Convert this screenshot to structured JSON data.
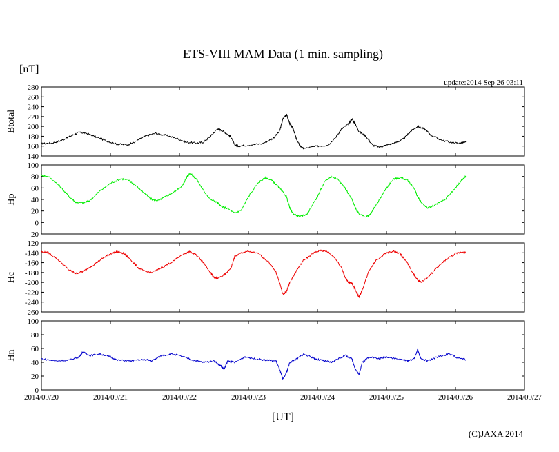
{
  "chart_data": {
    "type": "line",
    "title": "ETS-VIII MAM Data (1 min. sampling)",
    "y_unit_label": "[nT]",
    "update_text": "update:2014 Sep 26 03:11",
    "x_unit_label": "[UT]",
    "credit": "(C)JAXA 2014",
    "x_ticks": [
      "2014/09/20",
      "2014/09/21",
      "2014/09/22",
      "2014/09/23",
      "2014/09/24",
      "2014/09/25",
      "2014/09/26",
      "2014/09/27"
    ],
    "x_range": [
      "2014/09/20",
      "2014/09/27"
    ],
    "x_range_days": [
      0,
      7
    ],
    "panels": [
      {
        "name": "Btotal",
        "color": "#000000",
        "ylim": [
          140,
          280
        ],
        "yticks": [
          "280",
          "260",
          "240",
          "220",
          "200",
          "180",
          "160",
          "140"
        ],
        "points": [
          [
            0,
            165
          ],
          [
            0.15,
            166
          ],
          [
            0.3,
            172
          ],
          [
            0.45,
            182
          ],
          [
            0.55,
            188
          ],
          [
            0.65,
            186
          ],
          [
            0.8,
            178
          ],
          [
            0.95,
            170
          ],
          [
            1.1,
            164
          ],
          [
            1.25,
            163
          ],
          [
            1.35,
            168
          ],
          [
            1.5,
            180
          ],
          [
            1.65,
            186
          ],
          [
            1.8,
            182
          ],
          [
            1.95,
            176
          ],
          [
            2.1,
            168
          ],
          [
            2.25,
            166
          ],
          [
            2.35,
            168
          ],
          [
            2.45,
            180
          ],
          [
            2.55,
            195
          ],
          [
            2.6,
            193
          ],
          [
            2.7,
            184
          ],
          [
            2.75,
            178
          ],
          [
            2.8,
            162
          ],
          [
            2.85,
            160
          ],
          [
            3.0,
            162
          ],
          [
            3.2,
            165
          ],
          [
            3.35,
            175
          ],
          [
            3.45,
            190
          ],
          [
            3.5,
            215
          ],
          [
            3.55,
            225
          ],
          [
            3.6,
            205
          ],
          [
            3.65,
            195
          ],
          [
            3.7,
            172
          ],
          [
            3.75,
            160
          ],
          [
            3.8,
            155
          ],
          [
            4.0,
            160
          ],
          [
            4.15,
            162
          ],
          [
            4.25,
            175
          ],
          [
            4.35,
            195
          ],
          [
            4.45,
            205
          ],
          [
            4.5,
            215
          ],
          [
            4.55,
            205
          ],
          [
            4.6,
            190
          ],
          [
            4.7,
            180
          ],
          [
            4.8,
            162
          ],
          [
            4.9,
            158
          ],
          [
            5.0,
            162
          ],
          [
            5.15,
            168
          ],
          [
            5.25,
            175
          ],
          [
            5.35,
            190
          ],
          [
            5.45,
            200
          ],
          [
            5.55,
            195
          ],
          [
            5.65,
            182
          ],
          [
            5.8,
            172
          ],
          [
            5.95,
            167
          ],
          [
            6.05,
            166
          ],
          [
            6.15,
            168
          ]
        ]
      },
      {
        "name": "Hp",
        "color": "#00ee00",
        "ylim": [
          -20,
          100
        ],
        "yticks": [
          "100",
          "80",
          "60",
          "40",
          "20",
          "0",
          "-20"
        ],
        "points": [
          [
            0,
            82
          ],
          [
            0.1,
            80
          ],
          [
            0.25,
            65
          ],
          [
            0.4,
            45
          ],
          [
            0.5,
            35
          ],
          [
            0.6,
            34
          ],
          [
            0.7,
            38
          ],
          [
            0.85,
            55
          ],
          [
            1.0,
            68
          ],
          [
            1.15,
            76
          ],
          [
            1.25,
            74
          ],
          [
            1.35,
            66
          ],
          [
            1.5,
            50
          ],
          [
            1.6,
            40
          ],
          [
            1.7,
            38
          ],
          [
            1.8,
            45
          ],
          [
            1.95,
            55
          ],
          [
            2.05,
            65
          ],
          [
            2.1,
            78
          ],
          [
            2.15,
            86
          ],
          [
            2.25,
            75
          ],
          [
            2.35,
            55
          ],
          [
            2.45,
            40
          ],
          [
            2.55,
            35
          ],
          [
            2.6,
            28
          ],
          [
            2.7,
            24
          ],
          [
            2.8,
            16
          ],
          [
            2.9,
            22
          ],
          [
            3.0,
            45
          ],
          [
            3.15,
            70
          ],
          [
            3.25,
            78
          ],
          [
            3.35,
            72
          ],
          [
            3.45,
            60
          ],
          [
            3.55,
            45
          ],
          [
            3.6,
            25
          ],
          [
            3.65,
            15
          ],
          [
            3.75,
            10
          ],
          [
            3.85,
            15
          ],
          [
            4.0,
            45
          ],
          [
            4.1,
            70
          ],
          [
            4.2,
            80
          ],
          [
            4.3,
            75
          ],
          [
            4.4,
            60
          ],
          [
            4.5,
            40
          ],
          [
            4.55,
            25
          ],
          [
            4.6,
            15
          ],
          [
            4.7,
            10
          ],
          [
            4.75,
            12
          ],
          [
            4.85,
            30
          ],
          [
            5.0,
            60
          ],
          [
            5.1,
            75
          ],
          [
            5.2,
            78
          ],
          [
            5.3,
            74
          ],
          [
            5.4,
            60
          ],
          [
            5.45,
            45
          ],
          [
            5.5,
            35
          ],
          [
            5.6,
            25
          ],
          [
            5.7,
            30
          ],
          [
            5.85,
            40
          ],
          [
            6.0,
            60
          ],
          [
            6.1,
            75
          ],
          [
            6.15,
            80
          ]
        ]
      },
      {
        "name": "Hc",
        "color": "#ee0000",
        "ylim": [
          -260,
          -120
        ],
        "yticks": [
          "-120",
          "-140",
          "-160",
          "-180",
          "-200",
          "-220",
          "-240",
          "-260"
        ],
        "points": [
          [
            0,
            -138
          ],
          [
            0.1,
            -140
          ],
          [
            0.25,
            -155
          ],
          [
            0.4,
            -175
          ],
          [
            0.5,
            -182
          ],
          [
            0.6,
            -178
          ],
          [
            0.75,
            -165
          ],
          [
            0.9,
            -150
          ],
          [
            1.0,
            -142
          ],
          [
            1.1,
            -138
          ],
          [
            1.2,
            -142
          ],
          [
            1.3,
            -155
          ],
          [
            1.4,
            -170
          ],
          [
            1.5,
            -178
          ],
          [
            1.6,
            -180
          ],
          [
            1.75,
            -170
          ],
          [
            1.9,
            -158
          ],
          [
            2.05,
            -143
          ],
          [
            2.15,
            -138
          ],
          [
            2.25,
            -145
          ],
          [
            2.35,
            -160
          ],
          [
            2.45,
            -180
          ],
          [
            2.5,
            -190
          ],
          [
            2.55,
            -192
          ],
          [
            2.65,
            -185
          ],
          [
            2.75,
            -170
          ],
          [
            2.8,
            -148
          ],
          [
            2.9,
            -140
          ],
          [
            3.0,
            -137
          ],
          [
            3.15,
            -142
          ],
          [
            3.3,
            -160
          ],
          [
            3.4,
            -180
          ],
          [
            3.45,
            -200
          ],
          [
            3.5,
            -225
          ],
          [
            3.55,
            -218
          ],
          [
            3.6,
            -200
          ],
          [
            3.7,
            -175
          ],
          [
            3.8,
            -155
          ],
          [
            3.95,
            -140
          ],
          [
            4.05,
            -135
          ],
          [
            4.15,
            -138
          ],
          [
            4.25,
            -150
          ],
          [
            4.35,
            -170
          ],
          [
            4.4,
            -190
          ],
          [
            4.45,
            -200
          ],
          [
            4.5,
            -202
          ],
          [
            4.55,
            -215
          ],
          [
            4.6,
            -230
          ],
          [
            4.65,
            -215
          ],
          [
            4.75,
            -175
          ],
          [
            4.85,
            -155
          ],
          [
            5.0,
            -140
          ],
          [
            5.1,
            -137
          ],
          [
            5.2,
            -142
          ],
          [
            5.3,
            -160
          ],
          [
            5.4,
            -185
          ],
          [
            5.45,
            -195
          ],
          [
            5.5,
            -200
          ],
          [
            5.6,
            -190
          ],
          [
            5.7,
            -175
          ],
          [
            5.85,
            -155
          ],
          [
            6.0,
            -142
          ],
          [
            6.1,
            -138
          ],
          [
            6.15,
            -140
          ]
        ]
      },
      {
        "name": "Hn",
        "color": "#0000cc",
        "ylim": [
          0,
          100
        ],
        "yticks": [
          "100",
          "80",
          "60",
          "40",
          "20",
          "0"
        ],
        "points": [
          [
            0,
            45
          ],
          [
            0.2,
            42
          ],
          [
            0.4,
            43
          ],
          [
            0.55,
            48
          ],
          [
            0.6,
            55
          ],
          [
            0.7,
            50
          ],
          [
            0.85,
            52
          ],
          [
            1.0,
            48
          ],
          [
            1.1,
            43
          ],
          [
            1.3,
            42
          ],
          [
            1.5,
            44
          ],
          [
            1.6,
            42
          ],
          [
            1.75,
            50
          ],
          [
            1.9,
            52
          ],
          [
            2.05,
            48
          ],
          [
            2.2,
            43
          ],
          [
            2.35,
            40
          ],
          [
            2.5,
            42
          ],
          [
            2.6,
            35
          ],
          [
            2.65,
            30
          ],
          [
            2.7,
            42
          ],
          [
            2.8,
            40
          ],
          [
            2.95,
            48
          ],
          [
            3.1,
            45
          ],
          [
            3.25,
            43
          ],
          [
            3.4,
            42
          ],
          [
            3.45,
            30
          ],
          [
            3.5,
            15
          ],
          [
            3.55,
            25
          ],
          [
            3.6,
            40
          ],
          [
            3.7,
            45
          ],
          [
            3.8,
            52
          ],
          [
            3.9,
            48
          ],
          [
            4.0,
            44
          ],
          [
            4.1,
            42
          ],
          [
            4.2,
            40
          ],
          [
            4.3,
            45
          ],
          [
            4.4,
            50
          ],
          [
            4.5,
            45
          ],
          [
            4.55,
            30
          ],
          [
            4.6,
            22
          ],
          [
            4.65,
            40
          ],
          [
            4.75,
            48
          ],
          [
            4.9,
            45
          ],
          [
            5.0,
            48
          ],
          [
            5.15,
            45
          ],
          [
            5.3,
            42
          ],
          [
            5.4,
            45
          ],
          [
            5.45,
            58
          ],
          [
            5.5,
            45
          ],
          [
            5.6,
            42
          ],
          [
            5.75,
            48
          ],
          [
            5.9,
            52
          ],
          [
            6.05,
            46
          ],
          [
            6.15,
            44
          ]
        ]
      }
    ]
  }
}
